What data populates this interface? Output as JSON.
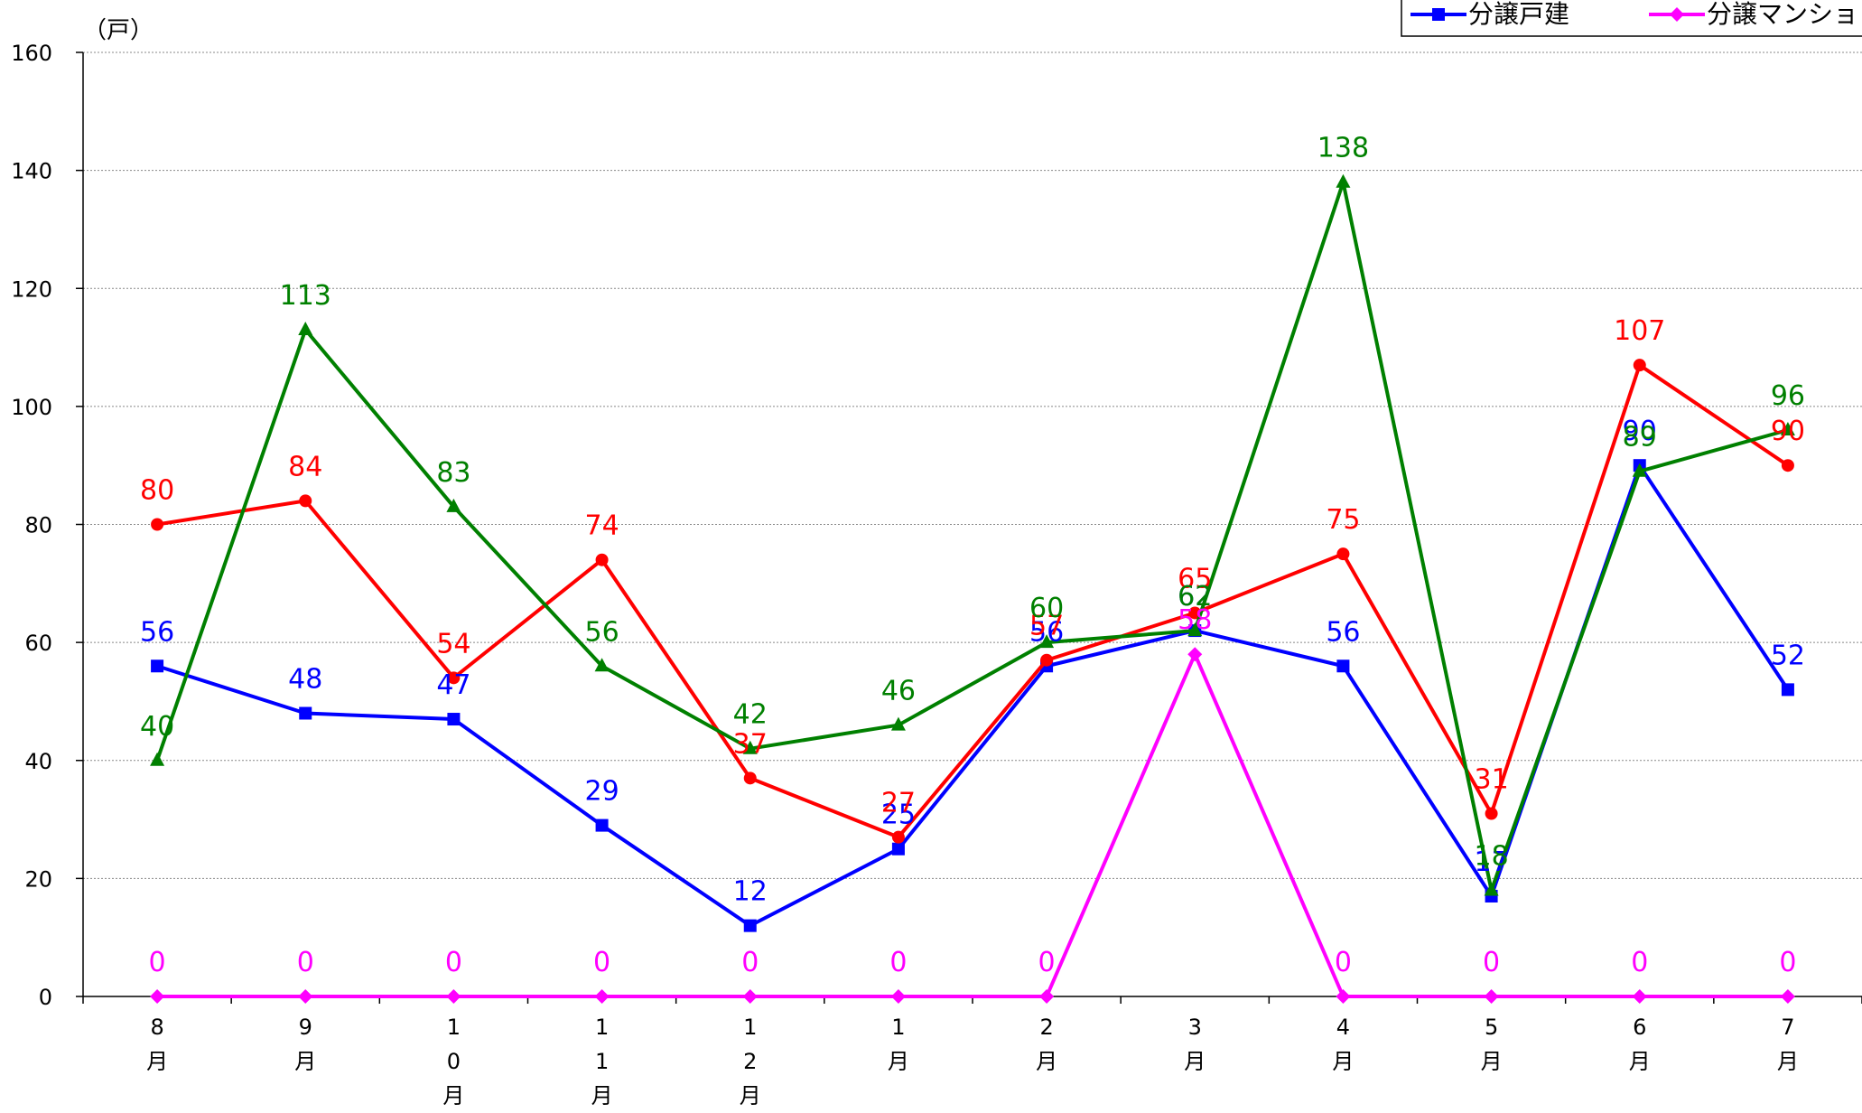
{
  "chart_data": {
    "type": "line",
    "unit_label": "（戸）",
    "categories": [
      "8月",
      "9月",
      "10月",
      "11月",
      "12月",
      "1月",
      "2月",
      "3月",
      "4月",
      "5月",
      "6月",
      "7月"
    ],
    "ylim": [
      0,
      160
    ],
    "yticks": [
      "0",
      "20",
      "40",
      "60",
      "80",
      "100",
      "120",
      "140",
      "160"
    ],
    "grid": true,
    "legend_position": "top-right",
    "series": [
      {
        "name": "分譲戸建",
        "color": "#0000ff",
        "marker": "square",
        "values": [
          56,
          48,
          47,
          29,
          12,
          25,
          56,
          62,
          56,
          17,
          90,
          52
        ]
      },
      {
        "name": "分譲マンション",
        "color": "#ff00ff",
        "marker": "diamond",
        "values": [
          0,
          0,
          0,
          0,
          0,
          0,
          0,
          58,
          0,
          0,
          0,
          0
        ]
      },
      {
        "name": "",
        "color": "#ff0000",
        "marker": "circle",
        "values": [
          80,
          84,
          54,
          74,
          37,
          27,
          57,
          65,
          75,
          31,
          107,
          90
        ]
      },
      {
        "name": "",
        "color": "#008000",
        "marker": "triangle",
        "values": [
          40,
          113,
          83,
          56,
          42,
          46,
          60,
          62,
          138,
          18,
          89,
          96
        ]
      }
    ]
  }
}
